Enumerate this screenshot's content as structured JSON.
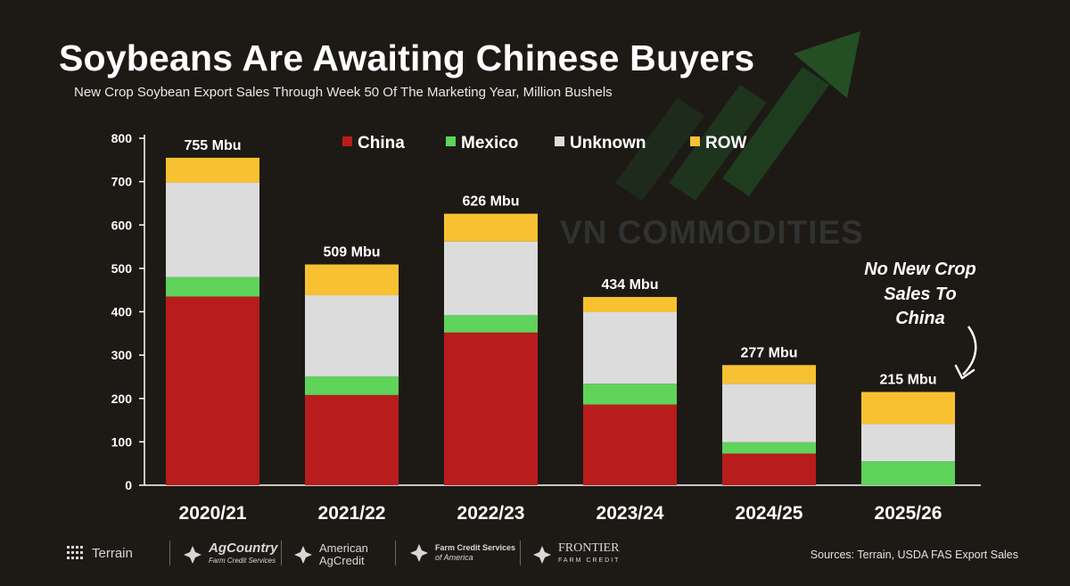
{
  "header": {
    "title": "Soybeans Are Awaiting Chinese Buyers",
    "subtitle": "New Crop Soybean Export Sales Through Week 50 Of The Marketing Year, Million Bushels"
  },
  "watermark": "VN COMMODITIES",
  "annotation": {
    "lines": [
      "No New Crop",
      "Sales To",
      "China"
    ]
  },
  "chart_data": {
    "type": "bar",
    "stacked": true,
    "categories": [
      "2020/21",
      "2021/22",
      "2022/23",
      "2023/24",
      "2024/25",
      "2025/26"
    ],
    "series": [
      {
        "name": "China",
        "color": "#b81c1c",
        "values": [
          435,
          208,
          352,
          186,
          73,
          0
        ]
      },
      {
        "name": "Mexico",
        "color": "#5fd35a",
        "values": [
          45,
          43,
          40,
          48,
          26,
          55
        ]
      },
      {
        "name": "Unknown",
        "color": "#dcdcdc",
        "values": [
          218,
          187,
          170,
          165,
          135,
          86
        ]
      },
      {
        "name": "ROW",
        "color": "#f7c131",
        "values": [
          57,
          71,
          64,
          35,
          43,
          74
        ]
      }
    ],
    "totals_labels": [
      "755 Mbu",
      "509 Mbu",
      "626 Mbu",
      "434 Mbu",
      "277 Mbu",
      "215 Mbu"
    ],
    "totals": [
      755,
      509,
      626,
      434,
      277,
      215
    ],
    "ylim": [
      0,
      800
    ],
    "yticks": [
      0,
      100,
      200,
      300,
      400,
      500,
      600,
      700,
      800
    ],
    "grid": false,
    "legend_position": "top"
  },
  "footer": {
    "logos": {
      "terrain": "Terrain",
      "agcountry": "AgCountry",
      "agcountry_sub": "Farm Credit Services",
      "american_line1": "American",
      "american_line2": "AgCredit",
      "fcsa_line1": "Farm Credit Services",
      "fcsa_line2": "of America",
      "frontier": "FRONTIER",
      "frontier_sub": "FARM CREDIT"
    },
    "sources": "Sources: Terrain, USDA FAS Export Sales"
  }
}
